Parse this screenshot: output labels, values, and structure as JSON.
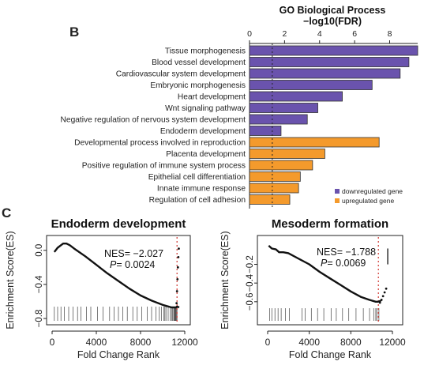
{
  "panel_b": {
    "label": "B",
    "chart_data": {
      "type": "bar",
      "orientation": "horizontal",
      "title": "GO Biological Process",
      "xlabel": "−log10(FDR)",
      "xlim": [
        0,
        9.6
      ],
      "xticks": [
        0,
        2,
        4,
        6,
        8
      ],
      "xtick_labels": [
        "0",
        "2",
        "4",
        "6",
        "8"
      ],
      "threshold_line": 1.3,
      "categories": [
        "Tissue morphogenesis",
        "Blood vessel development",
        "Cardiovascular system development",
        "Embryonic morphogenesis",
        "Heart development",
        "Wnt signaling pathway",
        "Negative regulation of nervous system development",
        "Endoderm development",
        "Developmental process involved in reproduction",
        "Placenta development",
        "Positive regulation of immune system process",
        "Epithelial cell differentiation",
        "Innate immune response",
        "Regulation of cell adhesion"
      ],
      "values": [
        9.6,
        9.1,
        8.6,
        7.0,
        5.3,
        3.9,
        3.3,
        1.8,
        7.4,
        4.3,
        3.6,
        2.9,
        2.8,
        2.3
      ],
      "groups": [
        "down",
        "down",
        "down",
        "down",
        "down",
        "down",
        "down",
        "down",
        "up",
        "up",
        "up",
        "up",
        "up",
        "up"
      ],
      "legend": [
        {
          "key": "down",
          "label": "downregulated gene",
          "color": "#6a53ad"
        },
        {
          "key": "up",
          "label": "upregulated gene",
          "color": "#f49a2c"
        }
      ],
      "legend_position": "bottom-right",
      "grid": false
    }
  },
  "panel_c": {
    "label": "C",
    "plots": [
      {
        "chart_data": {
          "type": "line",
          "title": "Endoderm development",
          "xlabel": "Fold Change Rank",
          "ylabel": "Enrichment Score(ES)",
          "xlim": [
            0,
            12000
          ],
          "ylim": [
            -0.8,
            0.1
          ],
          "xticks": [
            0,
            4000,
            8000,
            12000
          ],
          "yticks": [
            0.0,
            -0.4,
            -0.8
          ],
          "ytick_labels": [
            "0.0",
            "−0.4",
            "−0.8"
          ],
          "nes_text": "NES= −2.027",
          "p_label": "P",
          "p_value": "= 0.0024",
          "x": [
            200,
            500,
            800,
            1000,
            1300,
            1600,
            2000,
            3000,
            4000,
            5000,
            6000,
            7000,
            8000,
            9000,
            10000,
            10800,
            11200,
            11300,
            11500
          ],
          "y": [
            -0.02,
            0.03,
            0.06,
            0.08,
            0.08,
            0.06,
            0.02,
            -0.07,
            -0.17,
            -0.27,
            -0.36,
            -0.45,
            -0.53,
            -0.59,
            -0.64,
            -0.67,
            -0.67,
            -0.66,
            -0.67
          ],
          "leading_edge_x": 11300,
          "tail_points": {
            "x": [
              11260,
              11300,
              11340,
              11380,
              11420,
              11460
            ],
            "y": [
              -0.62,
              -0.48,
              -0.34,
              -0.2,
              -0.08,
              0.02
            ]
          },
          "hits": [
            200,
            500,
            800,
            1100,
            1500,
            1900,
            2300,
            2600,
            3100,
            3500,
            4100,
            4600,
            5200,
            5600,
            6000,
            6400,
            6800,
            7300,
            7700,
            8100,
            8600,
            9000,
            9400,
            9700,
            9900,
            10100,
            10200,
            10300,
            10500,
            10700,
            10800,
            10900,
            11000,
            11050,
            11100,
            11150,
            11200,
            11250,
            11300
          ],
          "grid": false
        }
      },
      {
        "chart_data": {
          "type": "line",
          "title": "Mesoderm formation",
          "xlabel": "Fold Change Rank",
          "ylabel": "Enrichment Score(ES)",
          "xlim": [
            0,
            12000
          ],
          "ylim": [
            -0.72,
            0.05
          ],
          "xticks": [
            0,
            4000,
            8000,
            12000
          ],
          "yticks": [
            -0.2,
            -0.4,
            -0.6
          ],
          "ytick_labels": [
            "−0.2",
            "−0.4",
            "−0.6"
          ],
          "nes_text": "NES= −1.788",
          "p_label": "P",
          "p_value": "= 0.0069",
          "x": [
            100,
            400,
            800,
            1100,
            1500,
            2000,
            3000,
            4000,
            5000,
            6000,
            7000,
            8000,
            9000,
            9800,
            10400,
            10600,
            10900
          ],
          "y": [
            0.0,
            -0.03,
            -0.04,
            -0.07,
            -0.07,
            -0.08,
            -0.14,
            -0.2,
            -0.28,
            -0.35,
            -0.42,
            -0.49,
            -0.55,
            -0.58,
            -0.6,
            -0.6,
            -0.59
          ],
          "leading_edge_x": 10650,
          "tail_points": {
            "x": [
              10800,
              10950,
              11100,
              11250,
              11400
            ],
            "y": [
              -0.61,
              -0.58,
              -0.54,
              -0.5,
              -0.46
            ]
          },
          "whisker": {
            "x": 11550,
            "y": [
              -0.2,
              -0.03
            ]
          },
          "hits": [
            200,
            400,
            700,
            1000,
            1300,
            1700,
            2100,
            3300,
            3600,
            4200,
            4800,
            5400,
            6100,
            6600,
            7200,
            7800,
            8500,
            9200,
            9800,
            10200,
            10400,
            10500,
            10700
          ],
          "grid": false
        }
      }
    ]
  }
}
